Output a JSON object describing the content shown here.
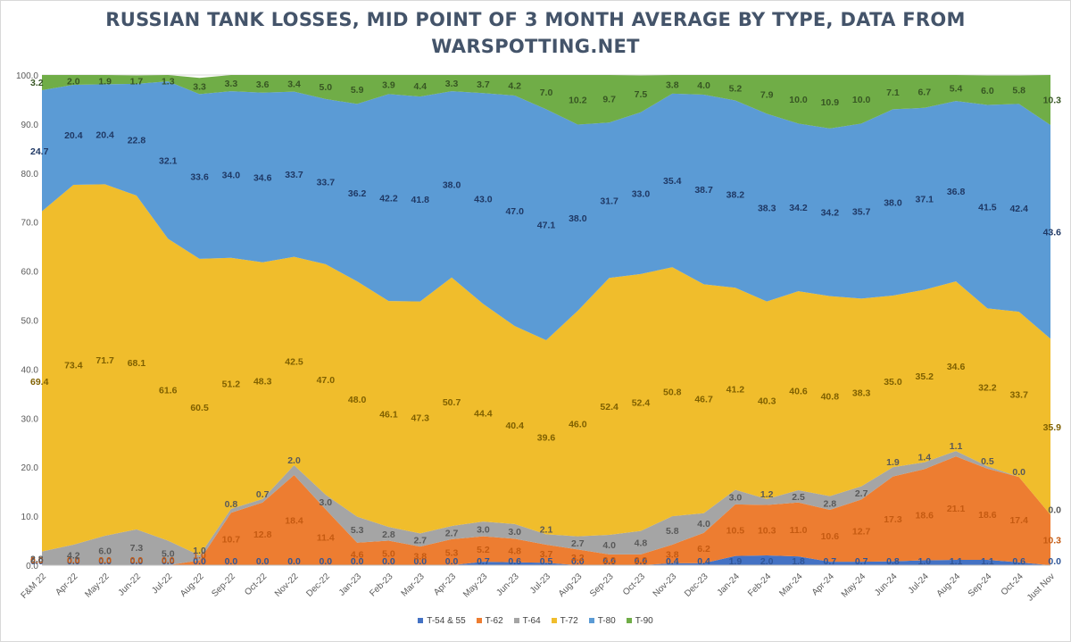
{
  "title_line1": "RUSSIAN TANK LOSSES, MID POINT OF 3 MONTH AVERAGE BY TYPE, DATA FROM",
  "title_line2": "WARSPOTTING.NET",
  "chart_data": {
    "type": "area",
    "stacked": true,
    "title": "RUSSIAN TANK LOSSES, MID POINT OF 3 MONTH AVERAGE BY TYPE, DATA FROM WARSPOTTING.NET",
    "xlabel": "",
    "ylabel": "",
    "ylim": [
      0,
      100
    ],
    "yticks": [
      "0.0",
      "10.0",
      "20.0",
      "30.0",
      "40.0",
      "50.0",
      "60.0",
      "70.0",
      "80.0",
      "90.0",
      "100.0"
    ],
    "grid": true,
    "legend_position": "bottom",
    "categories": [
      "F&M 22",
      "Apr-22",
      "May-22",
      "Jun-22",
      "Jul-22",
      "Aug-22",
      "Sep-22",
      "Oct-22",
      "Nov-22",
      "Dec-22",
      "Jan-23",
      "Feb-23",
      "Mar-23",
      "Apr-23",
      "May-23",
      "Jun-23",
      "Jul-23",
      "Aug-23",
      "Sep-23",
      "Oct-23",
      "Nov-23",
      "Dec-23",
      "Jan-24",
      "Feb-24",
      "Mar-24",
      "Apr-24",
      "May-24",
      "Jun-24",
      "Jul-24",
      "Aug-24",
      "Sep-24",
      "Oct-24",
      "Just Nov"
    ],
    "series": [
      {
        "name": "T-54 & 55",
        "color": "#4472c4",
        "label_color": "#2f5597",
        "values": [
          0.0,
          0.0,
          0.0,
          0.0,
          0.0,
          0.0,
          0.0,
          0.0,
          0.0,
          0.0,
          0.0,
          0.0,
          0.0,
          0.0,
          0.7,
          0.6,
          0.5,
          0.0,
          0.0,
          0.0,
          0.4,
          0.4,
          1.9,
          2.0,
          1.8,
          0.7,
          0.7,
          0.8,
          1.0,
          1.1,
          1.1,
          0.6,
          0.0
        ]
      },
      {
        "name": "T-62",
        "color": "#ed7d31",
        "label_color": "#c55a11",
        "values": [
          0.0,
          0.0,
          0.0,
          0.0,
          0.0,
          1.0,
          10.7,
          12.8,
          18.4,
          11.4,
          4.6,
          5.0,
          3.8,
          5.3,
          5.2,
          4.8,
          3.7,
          3.2,
          2.2,
          2.2,
          3.8,
          6.2,
          10.5,
          10.3,
          11.0,
          10.6,
          12.7,
          17.3,
          18.6,
          21.1,
          18.6,
          17.4,
          10.3
        ]
      },
      {
        "name": "T-64",
        "color": "#a5a5a5",
        "label_color": "#595959",
        "values": [
          2.8,
          4.2,
          6.0,
          7.3,
          5.0,
          1.0,
          0.8,
          0.7,
          2.0,
          3.0,
          5.3,
          2.8,
          2.7,
          2.7,
          3.0,
          3.0,
          2.1,
          2.7,
          4.0,
          4.8,
          5.8,
          4.0,
          3.0,
          1.2,
          2.5,
          2.8,
          2.7,
          1.9,
          1.4,
          1.1,
          0.5,
          0.0,
          0.0
        ]
      },
      {
        "name": "T-72",
        "color": "#f0bd2c",
        "label_color": "#7f6000",
        "values": [
          69.4,
          73.4,
          71.7,
          68.1,
          61.6,
          60.5,
          51.2,
          48.3,
          42.5,
          47.0,
          48.0,
          46.1,
          47.3,
          50.7,
          44.4,
          40.4,
          39.6,
          46.0,
          52.4,
          52.4,
          50.8,
          46.7,
          41.2,
          40.3,
          40.6,
          40.8,
          38.3,
          35.0,
          35.2,
          34.6,
          32.2,
          33.7,
          35.9
        ]
      },
      {
        "name": "T-80",
        "color": "#5b9bd5",
        "label_color": "#1f3864",
        "values": [
          24.7,
          20.4,
          20.4,
          22.8,
          32.1,
          33.6,
          34.0,
          34.6,
          33.7,
          33.7,
          36.2,
          42.2,
          41.8,
          38.0,
          43.0,
          47.0,
          47.1,
          38.0,
          31.7,
          33.0,
          35.4,
          38.7,
          38.2,
          38.3,
          34.2,
          34.2,
          35.7,
          38.0,
          37.1,
          36.8,
          41.5,
          42.4,
          43.6
        ]
      },
      {
        "name": "T-90",
        "color": "#70ad47",
        "label_color": "#375623",
        "values": [
          3.2,
          2.0,
          1.9,
          1.7,
          1.3,
          3.3,
          3.3,
          3.6,
          3.4,
          5.0,
          5.9,
          3.9,
          4.4,
          3.3,
          3.7,
          4.2,
          7.0,
          10.2,
          9.7,
          7.5,
          3.8,
          4.0,
          5.2,
          7.9,
          10.0,
          10.9,
          10.0,
          7.1,
          6.7,
          5.4,
          6.0,
          5.8,
          10.3
        ]
      }
    ]
  }
}
